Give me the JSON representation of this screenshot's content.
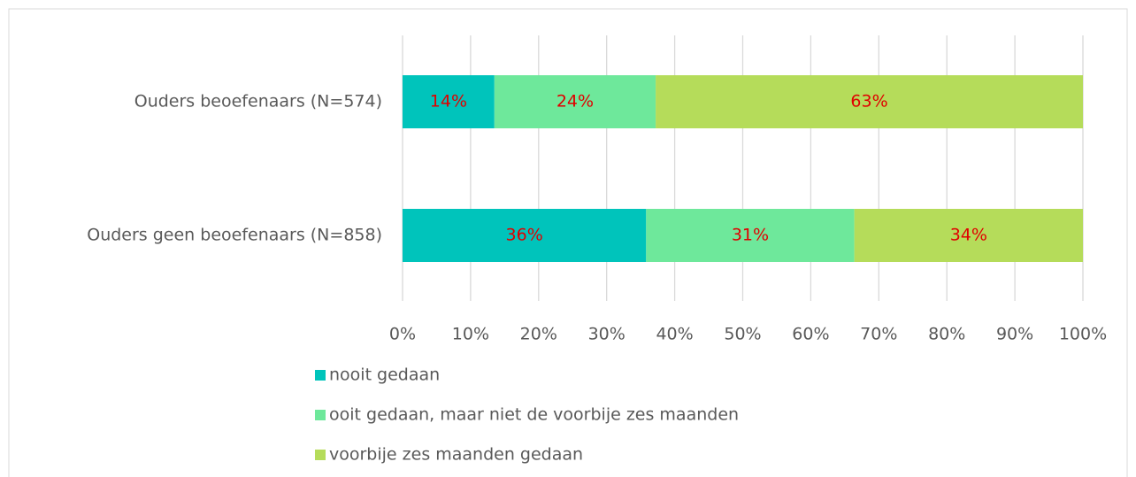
{
  "chart_data": {
    "type": "stacked-barh",
    "categories": [
      "Ouders beoefenaars (N=574)",
      "Ouders geen beoefenaars (N=858)"
    ],
    "series": [
      {
        "name": "nooit gedaan",
        "color": "#00c4bb",
        "values": [
          13.5,
          35.8
        ],
        "value_labels": [
          "14%",
          "36%"
        ]
      },
      {
        "name": "ooit gedaan, maar niet de voorbije zes maanden",
        "color": "#6ee89b",
        "values": [
          23.7,
          30.6
        ],
        "value_labels": [
          "24%",
          "31%"
        ]
      },
      {
        "name": "voorbije zes maanden gedaan",
        "color": "#b5dc5a",
        "values": [
          62.8,
          33.6
        ],
        "value_labels": [
          "63%",
          "34%"
        ]
      }
    ],
    "xlim": [
      0,
      100
    ],
    "xticks": [
      {
        "value": 0,
        "label": "0%"
      },
      {
        "value": 10,
        "label": "10%"
      },
      {
        "value": 20,
        "label": "20%"
      },
      {
        "value": 30,
        "label": "30%"
      },
      {
        "value": 40,
        "label": "40%"
      },
      {
        "value": 50,
        "label": "50%"
      },
      {
        "value": 60,
        "label": "60%"
      },
      {
        "value": 70,
        "label": "70%"
      },
      {
        "value": 80,
        "label": "80%"
      },
      {
        "value": 90,
        "label": "90%"
      },
      {
        "value": 100,
        "label": "100%"
      }
    ],
    "grid": true,
    "legend": "bottom",
    "label_color": "#e00000"
  }
}
